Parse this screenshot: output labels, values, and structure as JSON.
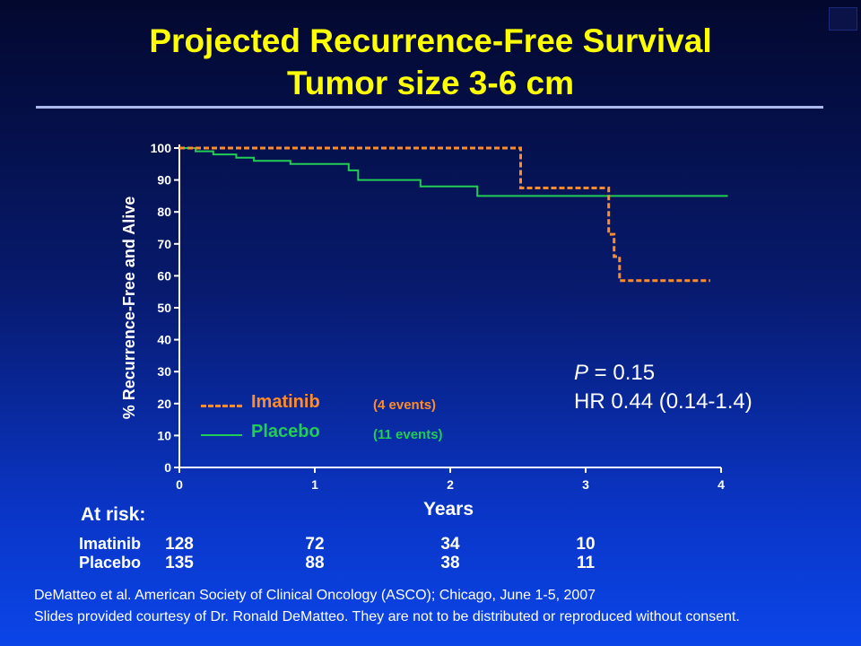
{
  "title_line1": "Projected Recurrence-Free Survival",
  "title_line2": "Tumor size 3-6 cm",
  "chart_data": {
    "type": "line",
    "title": "Projected Recurrence-Free Survival Tumor size 3-6 cm",
    "xlabel": "Years",
    "ylabel": "% Recurrence-Free and Alive",
    "xlim": [
      0,
      4
    ],
    "ylim": [
      0,
      100
    ],
    "xticks": [
      0,
      1,
      2,
      3,
      4
    ],
    "yticks": [
      0,
      10,
      20,
      30,
      40,
      50,
      60,
      70,
      80,
      90,
      100
    ],
    "grid": false,
    "legend_position": "bottom-left",
    "series": [
      {
        "name": "Imatinib",
        "note": "(4 events)",
        "style": "dashed",
        "color": "#ff8c2a",
        "x": [
          0,
          2.52,
          2.52,
          3.17,
          3.17,
          3.21,
          3.21,
          3.25,
          3.25,
          3.92
        ],
        "y": [
          100,
          100,
          87.5,
          87.5,
          73,
          73,
          66,
          66,
          58.5,
          58.5
        ]
      },
      {
        "name": "Placebo",
        "note": "(11 events)",
        "style": "solid",
        "color": "#22cc55",
        "x": [
          0,
          0.12,
          0.12,
          0.25,
          0.25,
          0.42,
          0.42,
          0.55,
          0.55,
          0.82,
          0.82,
          1.25,
          1.25,
          1.32,
          1.32,
          1.78,
          1.78,
          2.2,
          2.2,
          4.05
        ],
        "y": [
          100,
          100,
          99,
          99,
          98,
          98,
          97,
          97,
          96,
          96,
          95,
          95,
          93,
          93,
          90,
          90,
          88,
          88,
          85,
          85
        ]
      }
    ],
    "annotations": [
      "P = 0.15",
      "HR 0.44 (0.14-1.4)"
    ]
  },
  "stats": {
    "p_label": "P",
    "p_value": " = 0.15",
    "hr": "HR 0.44 (0.14-1.4)"
  },
  "at_risk": {
    "header": "At risk:",
    "rows": [
      {
        "label": "Imatinib",
        "values": [
          "128",
          "72",
          "34",
          "10"
        ]
      },
      {
        "label": "Placebo",
        "values": [
          "135",
          "88",
          "38",
          "11"
        ]
      }
    ]
  },
  "footer": {
    "line1": "DeMatteo et al. American Society of Clinical Oncology (ASCO); Chicago, June 1-5, 2007",
    "line2": "Slides provided courtesy of Dr. Ronald DeMatteo. They are not to be distributed or reproduced without consent."
  }
}
